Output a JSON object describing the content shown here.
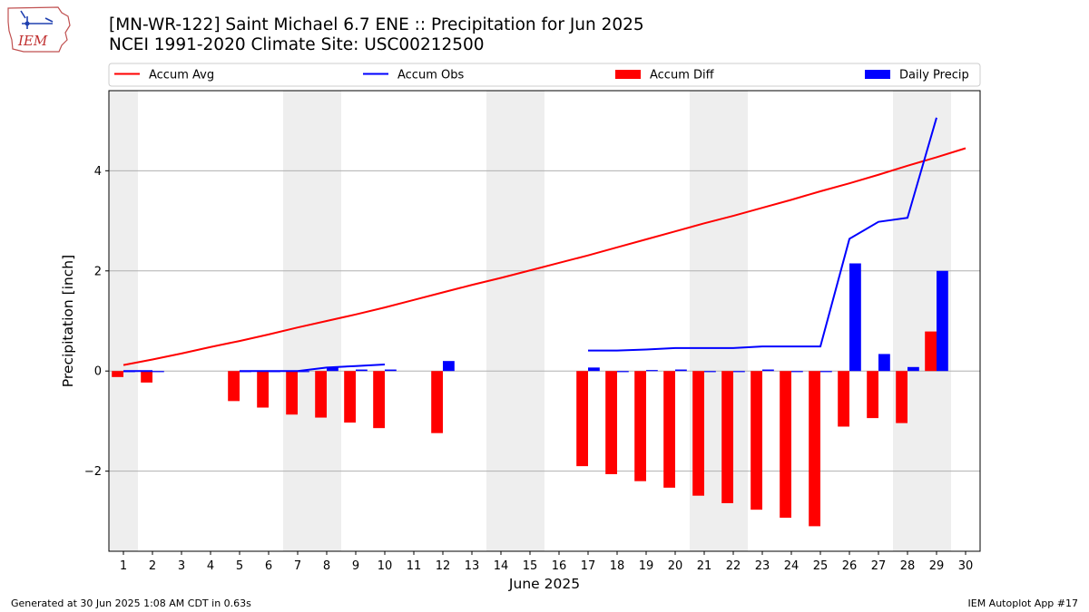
{
  "logo": {
    "text": "IEM"
  },
  "header": {
    "title": "[MN-WR-122] Saint Michael 6.7 ENE :: Precipitation for Jun 2025",
    "subtitle": "NCEI 1991-2020 Climate Site: USC00212500"
  },
  "footer": {
    "left": "Generated at 30 Jun 2025 1:08 AM CDT in 0.63s",
    "right": "IEM Autoplot App #17"
  },
  "colors": {
    "avg": "#ff0000",
    "obs": "#0000ff",
    "diff": "#ff0000",
    "daily": "#0000ff",
    "weekend": "#eeeeee",
    "grid": "#b0b0b0"
  },
  "chart_data": {
    "type": "bar",
    "xlabel": "June 2025",
    "ylabel": "Precipitation [inch]",
    "xlim": [
      0.5,
      30.5
    ],
    "ylim": [
      -3.6,
      5.6
    ],
    "x_ticks": [
      1,
      2,
      3,
      4,
      5,
      6,
      7,
      8,
      9,
      10,
      11,
      12,
      13,
      14,
      15,
      16,
      17,
      18,
      19,
      20,
      21,
      22,
      23,
      24,
      25,
      26,
      27,
      28,
      29,
      30
    ],
    "y_ticks": [
      -2,
      0,
      2,
      4
    ],
    "y_tick_labels": [
      "−2",
      "0",
      "2",
      "4"
    ],
    "grid": "horizontal",
    "legend_position": "top",
    "weekend_spans": [
      [
        0.5,
        1.5
      ],
      [
        6.5,
        8.5
      ],
      [
        13.5,
        15.5
      ],
      [
        20.5,
        22.5
      ],
      [
        27.5,
        29.5
      ]
    ],
    "accum_avg": {
      "name": "Accum Avg",
      "x": [
        1,
        2,
        3,
        4,
        5,
        6,
        7,
        8,
        9,
        10,
        11,
        12,
        13,
        14,
        15,
        16,
        17,
        18,
        19,
        20,
        21,
        22,
        23,
        24,
        25,
        26,
        27,
        28,
        29,
        30
      ],
      "y": [
        0.12,
        0.23,
        0.35,
        0.48,
        0.6,
        0.73,
        0.87,
        1.0,
        1.13,
        1.27,
        1.42,
        1.57,
        1.72,
        1.86,
        2.01,
        2.16,
        2.31,
        2.47,
        2.63,
        2.79,
        2.95,
        3.1,
        3.26,
        3.42,
        3.59,
        3.75,
        3.92,
        4.1,
        4.27,
        4.45
      ]
    },
    "accum_obs": {
      "name": "Accum Obs",
      "segments": [
        {
          "x": [
            1,
            2
          ],
          "y": [
            0.0,
            0.0
          ]
        },
        {
          "x": [
            5,
            6,
            7,
            8,
            9,
            10
          ],
          "y": [
            0.0,
            0.0,
            0.0,
            0.07,
            0.1,
            0.13
          ]
        },
        {
          "x": [
            17,
            18,
            19,
            20,
            21,
            22,
            23,
            24,
            25,
            26,
            27,
            28,
            29
          ],
          "y": [
            0.41,
            0.41,
            0.43,
            0.46,
            0.46,
            0.46,
            0.49,
            0.49,
            0.49,
            2.64,
            2.98,
            3.06,
            5.06
          ]
        }
      ]
    },
    "accum_diff": {
      "name": "Accum Diff",
      "x": [
        1,
        2,
        5,
        6,
        7,
        8,
        9,
        10,
        12,
        17,
        18,
        19,
        20,
        21,
        22,
        23,
        24,
        25,
        26,
        27,
        28,
        29
      ],
      "y": [
        -0.12,
        -0.23,
        -0.6,
        -0.73,
        -0.87,
        -0.93,
        -1.03,
        -1.14,
        -1.24,
        -1.9,
        -2.06,
        -2.2,
        -2.33,
        -2.49,
        -2.64,
        -2.77,
        -2.93,
        -3.1,
        -1.11,
        -0.94,
        -1.04,
        0.79
      ]
    },
    "daily_precip": {
      "name": "Daily Precip",
      "x": [
        1,
        2,
        5,
        6,
        7,
        8,
        9,
        10,
        12,
        17,
        18,
        19,
        20,
        21,
        22,
        23,
        24,
        25,
        26,
        27,
        28,
        29
      ],
      "y": [
        0.0,
        0.0,
        0.0,
        0.0,
        0.0,
        0.07,
        0.03,
        0.03,
        0.2,
        0.07,
        0.0,
        0.02,
        0.03,
        0.0,
        0.0,
        0.03,
        0.0,
        0.0,
        2.15,
        0.34,
        0.08,
        2.0
      ]
    }
  }
}
